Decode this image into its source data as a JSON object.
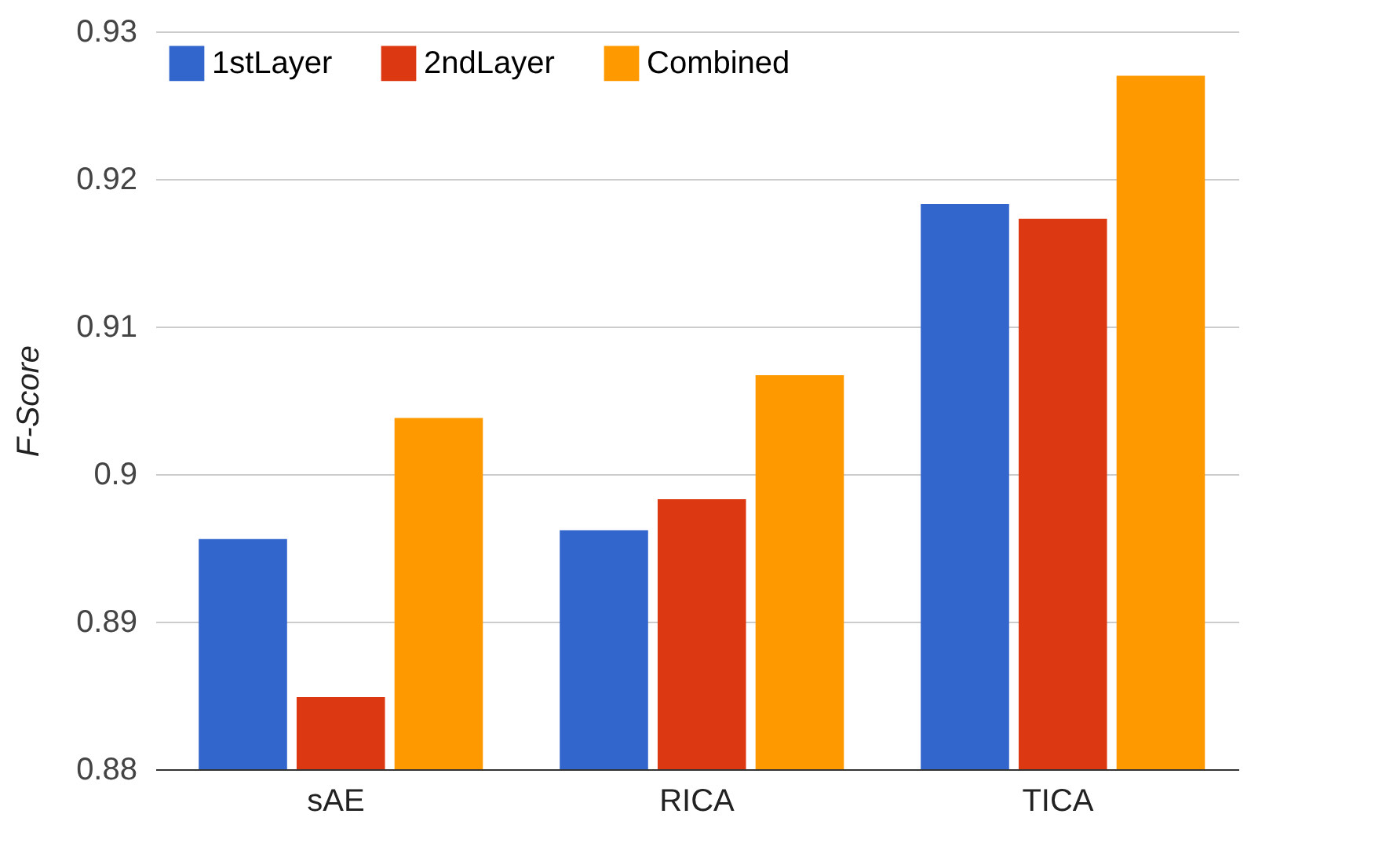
{
  "chart_data": {
    "type": "bar",
    "ylabel": "F-Score",
    "categories": [
      "sAE",
      "RICA",
      "TICA"
    ],
    "series": [
      {
        "name": "1stLayer",
        "color": "#3366cc",
        "values": [
          0.8956,
          0.8962,
          0.9183
        ]
      },
      {
        "name": "2ndLayer",
        "color": "#dc3912",
        "values": [
          0.8849,
          0.8983,
          0.9173
        ]
      },
      {
        "name": "Combined",
        "color": "#ff9900",
        "values": [
          0.9038,
          0.9067,
          0.927
        ]
      }
    ],
    "ylim": [
      0.88,
      0.93
    ],
    "yticks": [
      0.88,
      0.89,
      0.9,
      0.91,
      0.92,
      0.93
    ],
    "grid": "y",
    "legend": "top left"
  }
}
